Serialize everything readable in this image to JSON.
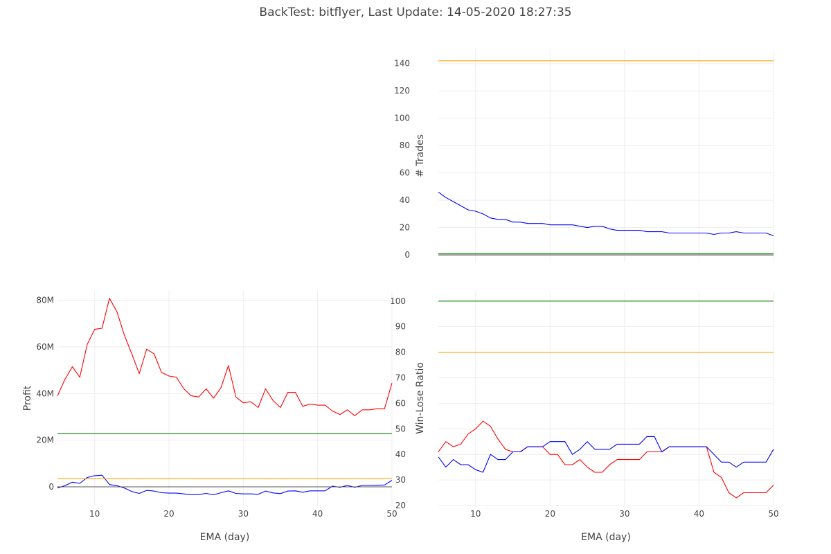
{
  "title": "BackTest: bitflyer, Last Update: 14-05-2020 18:27:35",
  "colors": {
    "red": "#ff0000",
    "blue": "#0000ff",
    "green": "#008000",
    "orange": "#ffa500",
    "gray": "#555555",
    "grid": "#eeeeee",
    "purple": "#4b0082"
  },
  "chart_data": [
    {
      "id": "trades",
      "type": "line",
      "xlabel": "",
      "ylabel": "# Trades",
      "xlim": [
        5,
        50
      ],
      "ylim": [
        -5,
        150
      ],
      "xticks": [
        10,
        20,
        30,
        40,
        50
      ],
      "yticks": [
        0,
        20,
        40,
        60,
        80,
        100,
        120,
        140
      ],
      "ytick_labels": [
        "0",
        "20",
        "40",
        "60",
        "80",
        "100",
        "120",
        "140"
      ],
      "show_xtick_labels": false,
      "grid": true,
      "x": [
        5,
        6,
        7,
        8,
        9,
        10,
        11,
        12,
        13,
        14,
        15,
        16,
        17,
        18,
        19,
        20,
        21,
        22,
        23,
        24,
        25,
        26,
        27,
        28,
        29,
        30,
        31,
        32,
        33,
        34,
        35,
        36,
        37,
        38,
        39,
        40,
        41,
        42,
        43,
        44,
        45,
        46,
        47,
        48,
        49,
        50
      ],
      "series": [
        {
          "color": "#0000ff",
          "values": [
            46,
            42,
            39,
            36,
            33,
            32,
            30,
            27,
            26,
            26,
            24,
            24,
            23,
            23,
            23,
            22,
            22,
            22,
            22,
            21,
            20,
            21,
            21,
            19,
            18,
            18,
            18,
            18,
            17,
            17,
            17,
            16,
            16,
            16,
            16,
            16,
            16,
            15,
            16,
            16,
            17,
            16,
            16,
            16,
            16,
            14
          ]
        },
        {
          "color": "#ffa500",
          "values": [
            142,
            142,
            142,
            142,
            142,
            142,
            142,
            142,
            142,
            142,
            142,
            142,
            142,
            142,
            142,
            142,
            142,
            142,
            142,
            142,
            142,
            142,
            142,
            142,
            142,
            142,
            142,
            142,
            142,
            142,
            142,
            142,
            142,
            142,
            142,
            142,
            142,
            142,
            142,
            142,
            142,
            142,
            142,
            142,
            142,
            142
          ]
        },
        {
          "color": "#008000",
          "values": [
            1,
            1,
            1,
            1,
            1,
            1,
            1,
            1,
            1,
            1,
            1,
            1,
            1,
            1,
            1,
            1,
            1,
            1,
            1,
            1,
            1,
            1,
            1,
            1,
            1,
            1,
            1,
            1,
            1,
            1,
            1,
            1,
            1,
            1,
            1,
            1,
            1,
            1,
            1,
            1,
            1,
            1,
            1,
            1,
            1,
            1
          ]
        },
        {
          "color": "#444444",
          "values": [
            0,
            0,
            0,
            0,
            0,
            0,
            0,
            0,
            0,
            0,
            0,
            0,
            0,
            0,
            0,
            0,
            0,
            0,
            0,
            0,
            0,
            0,
            0,
            0,
            0,
            0,
            0,
            0,
            0,
            0,
            0,
            0,
            0,
            0,
            0,
            0,
            0,
            0,
            0,
            0,
            0,
            0,
            0,
            0,
            0,
            0
          ]
        }
      ]
    },
    {
      "id": "profit",
      "type": "line",
      "xlabel": "EMA (day)",
      "ylabel": "Profit",
      "xlim": [
        5,
        50
      ],
      "ylim": [
        -8000000,
        84000000
      ],
      "xticks": [
        10,
        20,
        30,
        40,
        50
      ],
      "yticks": [
        0,
        20000000,
        40000000,
        60000000,
        80000000
      ],
      "ytick_labels": [
        "0",
        "20M",
        "40M",
        "60M",
        "80M"
      ],
      "show_xtick_labels": true,
      "grid": true,
      "x": [
        5,
        6,
        7,
        8,
        9,
        10,
        11,
        12,
        13,
        14,
        15,
        16,
        17,
        18,
        19,
        20,
        21,
        22,
        23,
        24,
        25,
        26,
        27,
        28,
        29,
        30,
        31,
        32,
        33,
        34,
        35,
        36,
        37,
        38,
        39,
        40,
        41,
        42,
        43,
        44,
        45,
        46,
        47,
        48,
        49,
        50
      ],
      "series": [
        {
          "color": "#ff0000",
          "values": [
            39000000,
            46000000,
            51500000,
            47000000,
            61000000,
            67500000,
            68000000,
            80800000,
            75000000,
            65000000,
            57000000,
            48500000,
            59000000,
            57000000,
            49000000,
            47500000,
            47000000,
            42000000,
            39000000,
            38500000,
            42000000,
            38000000,
            42500000,
            52000000,
            38500000,
            36000000,
            36500000,
            34000000,
            42000000,
            37000000,
            34000000,
            40500000,
            40500000,
            34500000,
            35500000,
            35000000,
            35000000,
            32500000,
            31000000,
            33000000,
            30500000,
            33000000,
            33000000,
            33500000,
            33500000,
            44500000
          ]
        },
        {
          "color": "#0000ff",
          "values": [
            -500000,
            500000,
            2000000,
            1500000,
            4000000,
            4800000,
            5000000,
            1000000,
            500000,
            -500000,
            -2000000,
            -2800000,
            -1500000,
            -1800000,
            -2500000,
            -2700000,
            -2700000,
            -3000000,
            -3400000,
            -3300000,
            -2800000,
            -3400000,
            -2500000,
            -1700000,
            -2800000,
            -3000000,
            -3000000,
            -3200000,
            -1800000,
            -2600000,
            -2900000,
            -1800000,
            -1700000,
            -2300000,
            -1700000,
            -1700000,
            -1700000,
            300000,
            -200000,
            600000,
            -200000,
            600000,
            600000,
            700000,
            800000,
            2800000
          ]
        },
        {
          "color": "#008000",
          "values": [
            22800000,
            22800000,
            22800000,
            22800000,
            22800000,
            22800000,
            22800000,
            22800000,
            22800000,
            22800000,
            22800000,
            22800000,
            22800000,
            22800000,
            22800000,
            22800000,
            22800000,
            22800000,
            22800000,
            22800000,
            22800000,
            22800000,
            22800000,
            22800000,
            22800000,
            22800000,
            22800000,
            22800000,
            22800000,
            22800000,
            22800000,
            22800000,
            22800000,
            22800000,
            22800000,
            22800000,
            22800000,
            22800000,
            22800000,
            22800000,
            22800000,
            22800000,
            22800000,
            22800000,
            22800000,
            22800000
          ]
        },
        {
          "color": "#ffa500",
          "values": [
            3500000,
            3500000,
            3500000,
            3500000,
            3500000,
            3500000,
            3500000,
            3500000,
            3500000,
            3500000,
            3500000,
            3500000,
            3500000,
            3500000,
            3500000,
            3500000,
            3500000,
            3500000,
            3500000,
            3500000,
            3500000,
            3500000,
            3500000,
            3500000,
            3500000,
            3500000,
            3500000,
            3500000,
            3500000,
            3500000,
            3500000,
            3500000,
            3500000,
            3500000,
            3500000,
            3500000,
            3500000,
            3500000,
            3500000,
            3500000,
            3500000,
            3500000,
            3500000,
            3500000,
            3500000,
            3500000
          ]
        },
        {
          "color": "#555555",
          "values": [
            0,
            0,
            0,
            0,
            0,
            0,
            0,
            0,
            0,
            0,
            0,
            0,
            0,
            0,
            0,
            0,
            0,
            0,
            0,
            0,
            0,
            0,
            0,
            0,
            0,
            0,
            0,
            0,
            0,
            0,
            0,
            0,
            0,
            0,
            0,
            0,
            0,
            0,
            0,
            0,
            0,
            0,
            0,
            0,
            0,
            0
          ]
        }
      ]
    },
    {
      "id": "winlose",
      "type": "line",
      "xlabel": "EMA (day)",
      "ylabel": "Win-Lose Ratio",
      "xlim": [
        5,
        50
      ],
      "ylim": [
        20,
        104
      ],
      "xticks": [
        10,
        20,
        30,
        40,
        50
      ],
      "yticks": [
        20,
        30,
        40,
        50,
        60,
        70,
        80,
        90,
        100
      ],
      "ytick_labels": [
        "20",
        "30",
        "40",
        "50",
        "60",
        "70",
        "80",
        "90",
        "100"
      ],
      "show_xtick_labels": true,
      "grid": true,
      "x": [
        5,
        6,
        7,
        8,
        9,
        10,
        11,
        12,
        13,
        14,
        15,
        16,
        17,
        18,
        19,
        20,
        21,
        22,
        23,
        24,
        25,
        26,
        27,
        28,
        29,
        30,
        31,
        32,
        33,
        34,
        35,
        36,
        37,
        38,
        39,
        40,
        41,
        42,
        43,
        44,
        45,
        46,
        47,
        48,
        49,
        50
      ],
      "series": [
        {
          "color": "#ff0000",
          "values": [
            41,
            45,
            43,
            44,
            48,
            50,
            53,
            51,
            46,
            42,
            41,
            41,
            43,
            43,
            43,
            40,
            40,
            36,
            36,
            38,
            35,
            33,
            33,
            36,
            38,
            38,
            38,
            38,
            41,
            41,
            41,
            43,
            43,
            43,
            43,
            43,
            43,
            33,
            31,
            25,
            23,
            25,
            25,
            25,
            25,
            28
          ]
        },
        {
          "color": "#0000ff",
          "values": [
            39,
            35,
            38,
            36,
            36,
            34,
            33,
            40,
            38,
            38,
            41,
            41,
            43,
            43,
            43,
            45,
            45,
            45,
            40,
            42,
            45,
            42,
            42,
            42,
            44,
            44,
            44,
            44,
            47,
            47,
            41,
            43,
            43,
            43,
            43,
            43,
            43,
            40,
            37,
            37,
            35,
            37,
            37,
            37,
            37,
            42
          ]
        },
        {
          "color": "#008000",
          "values": [
            100,
            100,
            100,
            100,
            100,
            100,
            100,
            100,
            100,
            100,
            100,
            100,
            100,
            100,
            100,
            100,
            100,
            100,
            100,
            100,
            100,
            100,
            100,
            100,
            100,
            100,
            100,
            100,
            100,
            100,
            100,
            100,
            100,
            100,
            100,
            100,
            100,
            100,
            100,
            100,
            100,
            100,
            100,
            100,
            100,
            100
          ]
        },
        {
          "color": "#ffa500",
          "values": [
            80,
            80,
            80,
            80,
            80,
            80,
            80,
            80,
            80,
            80,
            80,
            80,
            80,
            80,
            80,
            80,
            80,
            80,
            80,
            80,
            80,
            80,
            80,
            80,
            80,
            80,
            80,
            80,
            80,
            80,
            80,
            80,
            80,
            80,
            80,
            80,
            80,
            80,
            80,
            80,
            80,
            80,
            80,
            80,
            80,
            80
          ]
        }
      ]
    }
  ]
}
